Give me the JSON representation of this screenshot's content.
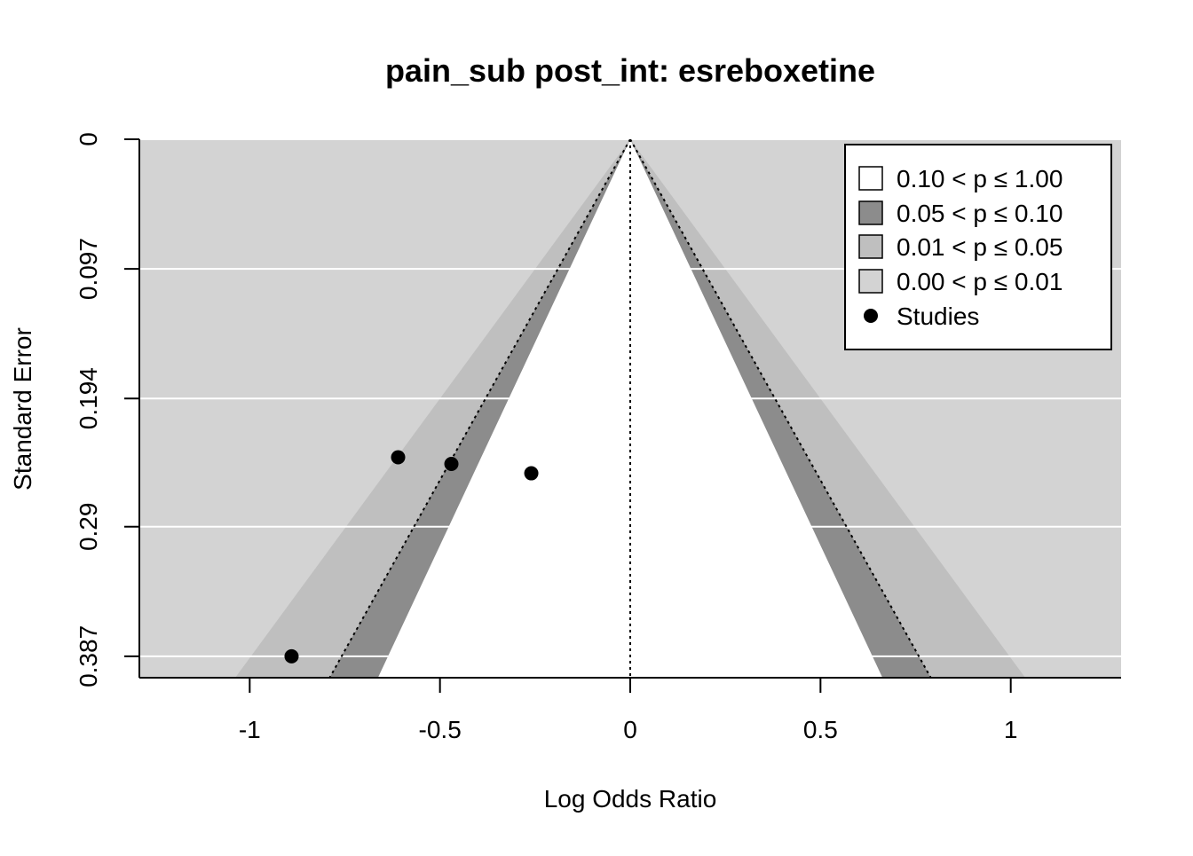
{
  "chart_data": {
    "type": "scatter",
    "subtype": "contour-enhanced funnel plot",
    "title": "pain_sub post_int: esreboxetine",
    "xlabel": "Log Odds Ratio",
    "ylabel": "Standard Error",
    "x_ticks": [
      -1,
      -0.5,
      0,
      0.5,
      1
    ],
    "x_tick_labels": [
      "-1",
      "-0.5",
      "0",
      "0.5",
      "1"
    ],
    "y_ticks": [
      0,
      0.097,
      0.194,
      0.29,
      0.387
    ],
    "y_tick_labels": [
      "0",
      "0.097",
      "0.194",
      "0.29",
      "0.387"
    ],
    "xlim": [
      -1.29,
      1.29
    ],
    "ylim": [
      0.403,
      0
    ],
    "y_reversed": true,
    "grid": "horizontal",
    "legend_position": "top-right",
    "reference_line_x": 0,
    "contours": [
      {
        "label": "0.10 < p ≤ 1.00",
        "z": 1.645,
        "color": "#ffffff"
      },
      {
        "label": "0.05 < p ≤ 0.10",
        "z": 1.96,
        "color": "#8c8c8c"
      },
      {
        "label": "0.01 < p ≤ 0.05",
        "z": 2.576,
        "color": "#bfbfbf"
      },
      {
        "label": "0.00 < p ≤ 0.01",
        "z": null,
        "color": "#d3d3d3"
      }
    ],
    "series": [
      {
        "name": "Studies",
        "points": [
          {
            "x": -0.61,
            "y": 0.238
          },
          {
            "x": -0.47,
            "y": 0.243
          },
          {
            "x": -0.26,
            "y": 0.25
          },
          {
            "x": -0.89,
            "y": 0.387
          }
        ]
      }
    ],
    "colors": {
      "panel_background": "#d3d3d3",
      "grid": "#ffffff",
      "points": "#000000"
    }
  }
}
